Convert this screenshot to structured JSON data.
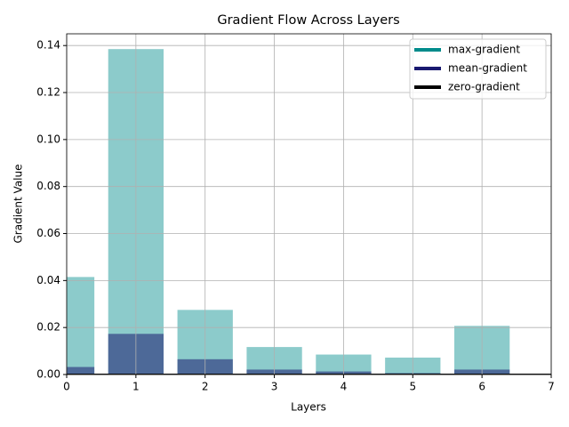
{
  "chart_data": {
    "type": "bar",
    "title": "Gradient Flow Across Layers",
    "x_label": "Layers",
    "y_label": "Gradient Value",
    "x": [
      0,
      1,
      2,
      3,
      4,
      5,
      6
    ],
    "series": [
      {
        "name": "max-gradient",
        "color": "#008b8b",
        "values": [
          0.0415,
          0.1385,
          0.0275,
          0.0117,
          0.0085,
          0.0072,
          0.0207
        ]
      },
      {
        "name": "mean-gradient",
        "color": "#191970",
        "values": [
          0.0032,
          0.0173,
          0.0065,
          0.0021,
          0.0013,
          0.0006,
          0.0021
        ]
      },
      {
        "name": "zero-gradient",
        "color": "#000000",
        "type": "line",
        "x": [
          0,
          7
        ],
        "values": [
          0,
          0
        ]
      }
    ],
    "xlim": [
      0,
      7
    ],
    "xticks": [
      0,
      1,
      2,
      3,
      4,
      5,
      6,
      7
    ],
    "ylim": [
      0,
      0.145
    ],
    "yticks": [
      {
        "value": 0,
        "label": "0.00"
      },
      {
        "value": 0.02,
        "label": "0.02"
      },
      {
        "value": 0.04,
        "label": "0.04"
      },
      {
        "value": 0.06,
        "label": "0.06"
      },
      {
        "value": 0.08,
        "label": "0.08"
      },
      {
        "value": 0.1,
        "label": "0.10"
      },
      {
        "value": 0.12,
        "label": "0.12"
      },
      {
        "value": 0.14,
        "label": "0.14"
      }
    ],
    "grid": true,
    "legend": "upper-right"
  }
}
